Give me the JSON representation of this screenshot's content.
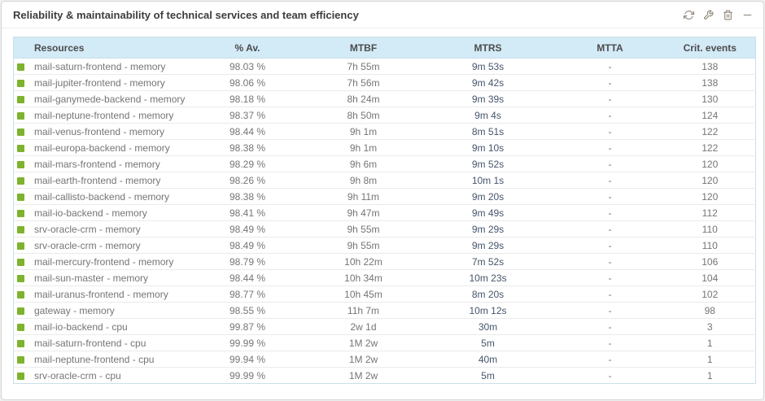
{
  "title": "Reliability & maintainability of technical services and team efficiency",
  "toolbar": {
    "icons": [
      "refresh-icon",
      "wrench-icon",
      "trash-icon",
      "minimize-icon"
    ]
  },
  "colors": {
    "status_green": "#7db32d",
    "header_bg": "#d3eaf7",
    "mtrs_text": "#44566b",
    "cell_text": "#757575"
  },
  "table": {
    "columns": [
      "Resources",
      "% Av.",
      "MTBF",
      "MTRS",
      "MTTA",
      "Crit. events"
    ],
    "rows": [
      {
        "resource": "mail-saturn-frontend - memory",
        "av": "98.03 %",
        "mtbf": "7h 55m",
        "mtrs": "9m 53s",
        "mtta": "-",
        "crit": "138"
      },
      {
        "resource": "mail-jupiter-frontend - memory",
        "av": "98.06 %",
        "mtbf": "7h 56m",
        "mtrs": "9m 42s",
        "mtta": "-",
        "crit": "138"
      },
      {
        "resource": "mail-ganymede-backend - memory",
        "av": "98.18 %",
        "mtbf": "8h 24m",
        "mtrs": "9m 39s",
        "mtta": "-",
        "crit": "130"
      },
      {
        "resource": "mail-neptune-frontend - memory",
        "av": "98.37 %",
        "mtbf": "8h 50m",
        "mtrs": "9m 4s",
        "mtta": "-",
        "crit": "124"
      },
      {
        "resource": "mail-venus-frontend - memory",
        "av": "98.44 %",
        "mtbf": "9h 1m",
        "mtrs": "8m 51s",
        "mtta": "-",
        "crit": "122"
      },
      {
        "resource": "mail-europa-backend - memory",
        "av": "98.38 %",
        "mtbf": "9h 1m",
        "mtrs": "9m 10s",
        "mtta": "-",
        "crit": "122"
      },
      {
        "resource": "mail-mars-frontend - memory",
        "av": "98.29 %",
        "mtbf": "9h 6m",
        "mtrs": "9m 52s",
        "mtta": "-",
        "crit": "120"
      },
      {
        "resource": "mail-earth-frontend - memory",
        "av": "98.26 %",
        "mtbf": "9h 8m",
        "mtrs": "10m 1s",
        "mtta": "-",
        "crit": "120"
      },
      {
        "resource": "mail-callisto-backend - memory",
        "av": "98.38 %",
        "mtbf": "9h 11m",
        "mtrs": "9m 20s",
        "mtta": "-",
        "crit": "120"
      },
      {
        "resource": "mail-io-backend - memory",
        "av": "98.41 %",
        "mtbf": "9h 47m",
        "mtrs": "9m 49s",
        "mtta": "-",
        "crit": "112"
      },
      {
        "resource": "srv-oracle-crm - memory",
        "av": "98.49 %",
        "mtbf": "9h 55m",
        "mtrs": "9m 29s",
        "mtta": "-",
        "crit": "110"
      },
      {
        "resource": "srv-oracle-crm - memory",
        "av": "98.49 %",
        "mtbf": "9h 55m",
        "mtrs": "9m 29s",
        "mtta": "-",
        "crit": "110"
      },
      {
        "resource": "mail-mercury-frontend - memory",
        "av": "98.79 %",
        "mtbf": "10h 22m",
        "mtrs": "7m 52s",
        "mtta": "-",
        "crit": "106"
      },
      {
        "resource": "mail-sun-master - memory",
        "av": "98.44 %",
        "mtbf": "10h 34m",
        "mtrs": "10m 23s",
        "mtta": "-",
        "crit": "104"
      },
      {
        "resource": "mail-uranus-frontend - memory",
        "av": "98.77 %",
        "mtbf": "10h 45m",
        "mtrs": "8m 20s",
        "mtta": "-",
        "crit": "102"
      },
      {
        "resource": "gateway - memory",
        "av": "98.55 %",
        "mtbf": "11h 7m",
        "mtrs": "10m 12s",
        "mtta": "-",
        "crit": "98"
      },
      {
        "resource": "mail-io-backend - cpu",
        "av": "99.87 %",
        "mtbf": "2w 1d",
        "mtrs": "30m",
        "mtta": "-",
        "crit": "3"
      },
      {
        "resource": "mail-saturn-frontend - cpu",
        "av": "99.99 %",
        "mtbf": "1M 2w",
        "mtrs": "5m",
        "mtta": "-",
        "crit": "1"
      },
      {
        "resource": "mail-neptune-frontend - cpu",
        "av": "99.94 %",
        "mtbf": "1M 2w",
        "mtrs": "40m",
        "mtta": "-",
        "crit": "1"
      },
      {
        "resource": "srv-oracle-crm - cpu",
        "av": "99.99 %",
        "mtbf": "1M 2w",
        "mtrs": "5m",
        "mtta": "-",
        "crit": "1"
      }
    ]
  }
}
